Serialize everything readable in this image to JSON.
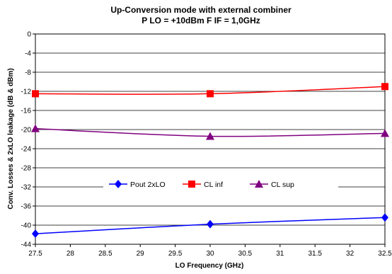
{
  "chart_data": {
    "type": "line",
    "title_line1": "Up-Conversion mode with external combiner",
    "title_line2": "P LO = +10dBm F IF = 1,0GHz",
    "xlabel": "LO Frequency (GHz)",
    "ylabel": "Conv. Losses & 2xLO leakage (dB & dBm)",
    "xlim": [
      27.5,
      32.5
    ],
    "ylim": [
      -44,
      0
    ],
    "x_ticks": [
      "27.5",
      "28",
      "28.5",
      "29",
      "29.5",
      "30",
      "30.5",
      "31",
      "31.5",
      "32",
      "32.5"
    ],
    "y_ticks": [
      "0",
      "-4",
      "-8",
      "-12",
      "-16",
      "-20",
      "-24",
      "-28",
      "-32",
      "-36",
      "-40",
      "-44"
    ],
    "grid": "horizontal",
    "legend_position": "inside-lower-center",
    "series": [
      {
        "name": "Pout 2xLO",
        "color": "#0000ff",
        "marker": "diamond",
        "x": [
          27.5,
          30,
          32.5
        ],
        "y": [
          -41.8,
          -39.8,
          -38.4
        ]
      },
      {
        "name": "CL inf",
        "color": "#ff0000",
        "marker": "square",
        "x": [
          27.5,
          30,
          32.5
        ],
        "y": [
          -12.5,
          -12.5,
          -11.0
        ]
      },
      {
        "name": "CL sup",
        "color": "#800080",
        "marker": "triangle",
        "x": [
          27.5,
          30,
          32.5
        ],
        "y": [
          -19.8,
          -21.4,
          -20.8
        ]
      }
    ]
  }
}
